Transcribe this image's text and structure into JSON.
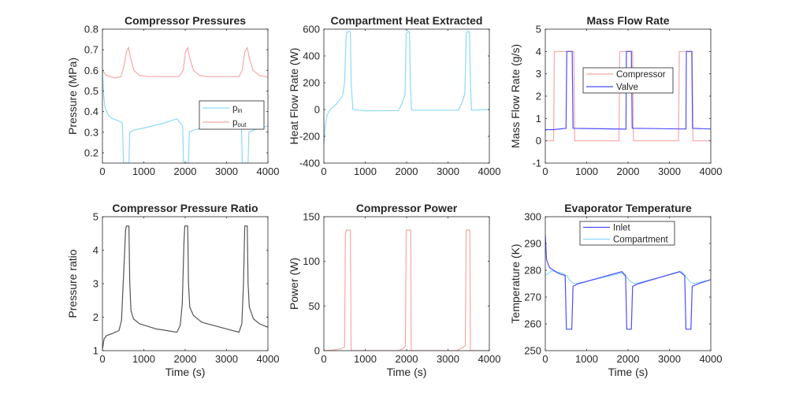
{
  "chart_data": [
    {
      "type": "line",
      "title": "Compressor Pressures",
      "xlabel": "",
      "ylabel": "Pressure (MPa)",
      "xlim": [
        0,
        4000
      ],
      "ylim": [
        0.15,
        0.8
      ],
      "xticks": [
        0,
        1000,
        2000,
        3000,
        4000
      ],
      "yticks": [
        0.2,
        0.3,
        0.4,
        0.5,
        0.6,
        0.7,
        0.8
      ],
      "legend": {
        "placement": "right-middle",
        "entries": [
          {
            "main": "p",
            "sub": "in"
          },
          {
            "main": "p",
            "sub": "out"
          }
        ]
      },
      "series": [
        {
          "name": "p_in",
          "color": "#8fd9f7",
          "points": [
            [
              0,
              0.6
            ],
            [
              20,
              0.5
            ],
            [
              60,
              0.42
            ],
            [
              150,
              0.38
            ],
            [
              250,
              0.365
            ],
            [
              400,
              0.355
            ],
            [
              480,
              0.345
            ],
            [
              510,
              0.15
            ],
            [
              640,
              0.15
            ],
            [
              660,
              0.3
            ],
            [
              750,
              0.31
            ],
            [
              1000,
              0.32
            ],
            [
              1500,
              0.345
            ],
            [
              1800,
              0.365
            ],
            [
              1860,
              0.35
            ],
            [
              1940,
              0.33
            ],
            [
              1960,
              0.15
            ],
            [
              2080,
              0.15
            ],
            [
              2100,
              0.3
            ],
            [
              2200,
              0.31
            ],
            [
              2500,
              0.325
            ],
            [
              3000,
              0.34
            ],
            [
              3360,
              0.35
            ],
            [
              3380,
              0.15
            ],
            [
              3520,
              0.15
            ],
            [
              3540,
              0.3
            ],
            [
              3650,
              0.31
            ],
            [
              4000,
              0.33
            ]
          ]
        },
        {
          "name": "p_out",
          "color": "#f8a8a8",
          "points": [
            [
              0,
              0.6
            ],
            [
              100,
              0.575
            ],
            [
              300,
              0.563
            ],
            [
              450,
              0.57
            ],
            [
              520,
              0.62
            ],
            [
              580,
              0.69
            ],
            [
              630,
              0.71
            ],
            [
              680,
              0.66
            ],
            [
              760,
              0.6
            ],
            [
              900,
              0.575
            ],
            [
              1100,
              0.57
            ],
            [
              1850,
              0.57
            ],
            [
              1950,
              0.6
            ],
            [
              2010,
              0.69
            ],
            [
              2060,
              0.71
            ],
            [
              2110,
              0.66
            ],
            [
              2200,
              0.6
            ],
            [
              2350,
              0.575
            ],
            [
              2500,
              0.57
            ],
            [
              3300,
              0.57
            ],
            [
              3380,
              0.6
            ],
            [
              3440,
              0.69
            ],
            [
              3500,
              0.71
            ],
            [
              3550,
              0.66
            ],
            [
              3640,
              0.6
            ],
            [
              3800,
              0.575
            ],
            [
              4000,
              0.567
            ]
          ]
        }
      ]
    },
    {
      "type": "line",
      "title": "Compartment Heat Extracted",
      "xlabel": "",
      "ylabel": "Heat Flow Rate (W)",
      "xlim": [
        0,
        4000
      ],
      "ylim": [
        -400,
        600
      ],
      "xticks": [
        0,
        1000,
        2000,
        3000,
        4000
      ],
      "yticks": [
        -400,
        -200,
        0,
        200,
        400,
        600
      ],
      "series": [
        {
          "name": "Heat",
          "color": "#8fd9f7",
          "points": [
            [
              0,
              -260
            ],
            [
              30,
              -120
            ],
            [
              80,
              -40
            ],
            [
              150,
              0
            ],
            [
              300,
              40
            ],
            [
              450,
              100
            ],
            [
              500,
              200
            ],
            [
              540,
              560
            ],
            [
              560,
              580
            ],
            [
              640,
              580
            ],
            [
              660,
              200
            ],
            [
              700,
              0
            ],
            [
              1000,
              -10
            ],
            [
              1800,
              -8
            ],
            [
              1880,
              40
            ],
            [
              1960,
              110
            ],
            [
              1990,
              560
            ],
            [
              2010,
              580
            ],
            [
              2070,
              580
            ],
            [
              2090,
              200
            ],
            [
              2120,
              -5
            ],
            [
              3250,
              -5
            ],
            [
              3350,
              60
            ],
            [
              3410,
              120
            ],
            [
              3440,
              560
            ],
            [
              3460,
              580
            ],
            [
              3520,
              580
            ],
            [
              3540,
              200
            ],
            [
              3570,
              -5
            ],
            [
              4000,
              0
            ]
          ]
        }
      ]
    },
    {
      "type": "line",
      "title": "Mass Flow Rate",
      "xlabel": "",
      "ylabel": "Mass Flow Rate (g/s)",
      "xlim": [
        0,
        4000
      ],
      "ylim": [
        -1,
        5
      ],
      "xticks": [
        0,
        1000,
        2000,
        3000,
        4000
      ],
      "yticks": [
        -1,
        0,
        1,
        2,
        3,
        4,
        5
      ],
      "legend": {
        "placement": "top-middle",
        "entries": [
          {
            "main": "Compressor"
          },
          {
            "main": "Valve"
          }
        ]
      },
      "series": [
        {
          "name": "Compressor",
          "color": "#f8a8a8",
          "points": [
            [
              0,
              0
            ],
            [
              200,
              0
            ],
            [
              220,
              4
            ],
            [
              690,
              4
            ],
            [
              710,
              0
            ],
            [
              1780,
              0
            ],
            [
              1800,
              4
            ],
            [
              2110,
              4
            ],
            [
              2130,
              0
            ],
            [
              3220,
              0
            ],
            [
              3240,
              4
            ],
            [
              3550,
              4
            ],
            [
              3570,
              0
            ],
            [
              4000,
              0
            ]
          ]
        },
        {
          "name": "Valve",
          "color": "#4d4dff",
          "points": [
            [
              0,
              0.45
            ],
            [
              20,
              0.5
            ],
            [
              200,
              0.5
            ],
            [
              500,
              0.56
            ],
            [
              520,
              4
            ],
            [
              650,
              4
            ],
            [
              670,
              0.56
            ],
            [
              1000,
              0.55
            ],
            [
              1950,
              0.52
            ],
            [
              1960,
              4
            ],
            [
              2080,
              4
            ],
            [
              2100,
              0.56
            ],
            [
              3400,
              0.53
            ],
            [
              3410,
              4
            ],
            [
              3540,
              4
            ],
            [
              3560,
              0.56
            ],
            [
              4000,
              0.53
            ]
          ]
        }
      ]
    },
    {
      "type": "line",
      "title": "Compressor Pressure Ratio",
      "xlabel": "Time (s)",
      "ylabel": "Pressure ratio",
      "xlim": [
        0,
        4000
      ],
      "ylim": [
        1,
        5
      ],
      "xticks": [
        0,
        1000,
        2000,
        3000,
        4000
      ],
      "yticks": [
        1,
        2,
        3,
        4,
        5
      ],
      "series": [
        {
          "name": "Ratio",
          "color": "#555555",
          "points": [
            [
              0,
              1.05
            ],
            [
              40,
              1.35
            ],
            [
              100,
              1.45
            ],
            [
              250,
              1.52
            ],
            [
              400,
              1.6
            ],
            [
              460,
              1.9
            ],
            [
              520,
              3.5
            ],
            [
              560,
              4.6
            ],
            [
              580,
              4.72
            ],
            [
              640,
              4.72
            ],
            [
              660,
              3
            ],
            [
              690,
              2.2
            ],
            [
              750,
              1.95
            ],
            [
              900,
              1.8
            ],
            [
              1300,
              1.65
            ],
            [
              1800,
              1.55
            ],
            [
              1880,
              1.75
            ],
            [
              1930,
              2.4
            ],
            [
              1970,
              4.2
            ],
            [
              1990,
              4.72
            ],
            [
              2060,
              4.72
            ],
            [
              2080,
              3
            ],
            [
              2110,
              2.3
            ],
            [
              2200,
              2.05
            ],
            [
              2400,
              1.85
            ],
            [
              3000,
              1.65
            ],
            [
              3300,
              1.55
            ],
            [
              3370,
              1.8
            ],
            [
              3410,
              3
            ],
            [
              3440,
              4.72
            ],
            [
              3500,
              4.72
            ],
            [
              3520,
              3
            ],
            [
              3550,
              2.3
            ],
            [
              3650,
              1.95
            ],
            [
              3800,
              1.8
            ],
            [
              4000,
              1.7
            ]
          ]
        }
      ]
    },
    {
      "type": "line",
      "title": "Compressor Power",
      "xlabel": "Time (s)",
      "ylabel": "Power (W)",
      "xlim": [
        0,
        4000
      ],
      "ylim": [
        0,
        150
      ],
      "xticks": [
        0,
        1000,
        2000,
        3000,
        4000
      ],
      "yticks": [
        0,
        50,
        100,
        150
      ],
      "series": [
        {
          "name": "Power",
          "color": "#f8a8a8",
          "points": [
            [
              0,
              0
            ],
            [
              200,
              0.5
            ],
            [
              400,
              2
            ],
            [
              500,
              4
            ],
            [
              520,
              130
            ],
            [
              540,
              135
            ],
            [
              640,
              135
            ],
            [
              660,
              0
            ],
            [
              1800,
              0
            ],
            [
              1900,
              2
            ],
            [
              1970,
              5
            ],
            [
              1990,
              130
            ],
            [
              2000,
              135
            ],
            [
              2100,
              135
            ],
            [
              2110,
              0
            ],
            [
              3200,
              0
            ],
            [
              3350,
              3
            ],
            [
              3420,
              6
            ],
            [
              3440,
              135
            ],
            [
              3530,
              135
            ],
            [
              3540,
              0
            ],
            [
              4000,
              0
            ]
          ]
        }
      ]
    },
    {
      "type": "line",
      "title": "Evaporator Temperature",
      "xlabel": "Time (s)",
      "ylabel": "Temperature (K)",
      "xlim": [
        0,
        4000
      ],
      "ylim": [
        250,
        300
      ],
      "xticks": [
        0,
        1000,
        2000,
        3000,
        4000
      ],
      "yticks": [
        250,
        260,
        270,
        280,
        290,
        300
      ],
      "legend": {
        "placement": "top-middle",
        "entries": [
          {
            "main": "Inlet"
          },
          {
            "main": "Compartment"
          }
        ]
      },
      "series": [
        {
          "name": "Compartment",
          "color": "#8fd9f7",
          "points": [
            [
              0,
              278
            ],
            [
              150,
              279.8
            ],
            [
              400,
              279
            ],
            [
              520,
              278
            ],
            [
              600,
              276
            ],
            [
              700,
              275
            ],
            [
              900,
              275.5
            ],
            [
              1850,
              279
            ],
            [
              1950,
              277.5
            ],
            [
              2050,
              276
            ],
            [
              2150,
              275
            ],
            [
              2300,
              275.5
            ],
            [
              3300,
              279.5
            ],
            [
              3400,
              277.5
            ],
            [
              3480,
              276
            ],
            [
              3580,
              275
            ],
            [
              4000,
              276.5
            ]
          ]
        },
        {
          "name": "Inlet",
          "color": "#4d4dff",
          "points": [
            [
              0,
              293
            ],
            [
              30,
              284
            ],
            [
              100,
              281
            ],
            [
              300,
              279
            ],
            [
              480,
              278
            ],
            [
              510,
              258
            ],
            [
              640,
              258
            ],
            [
              670,
              274
            ],
            [
              800,
              275
            ],
            [
              1850,
              279.5
            ],
            [
              1940,
              278
            ],
            [
              1970,
              258
            ],
            [
              2080,
              258
            ],
            [
              2110,
              274
            ],
            [
              2250,
              275
            ],
            [
              3250,
              279.5
            ],
            [
              3370,
              278
            ],
            [
              3400,
              258
            ],
            [
              3520,
              258
            ],
            [
              3550,
              274
            ],
            [
              3700,
              275
            ],
            [
              4000,
              276.5
            ]
          ]
        }
      ]
    }
  ]
}
